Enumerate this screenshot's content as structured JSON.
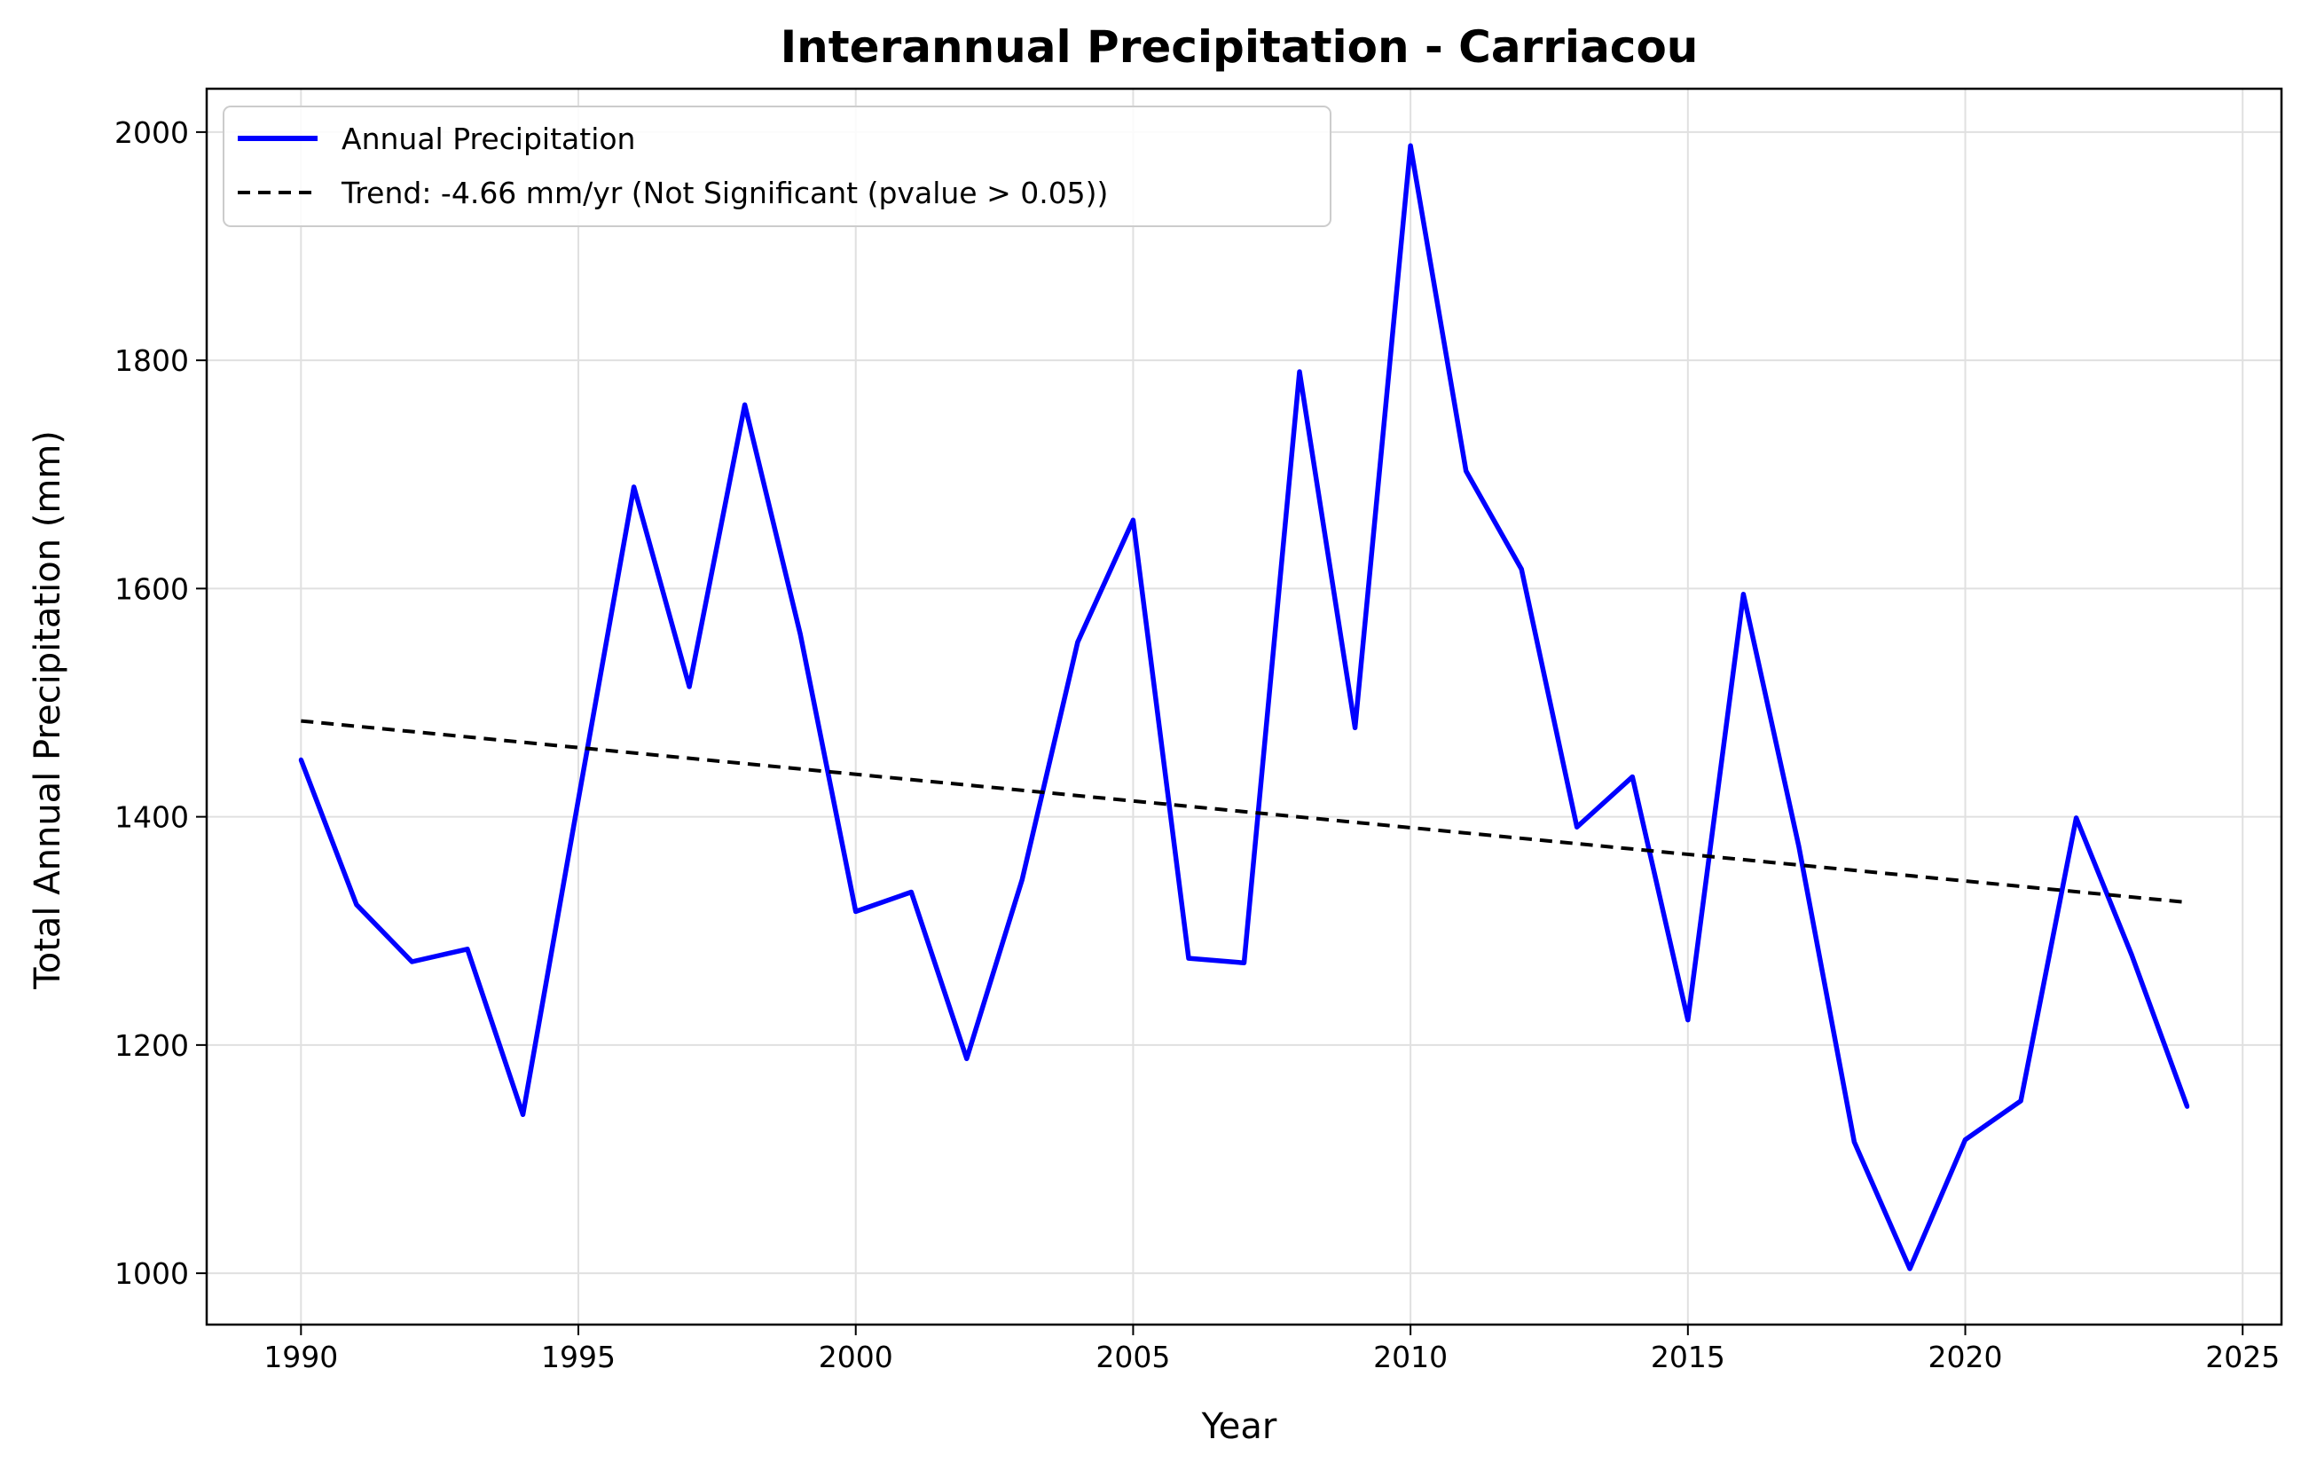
{
  "chart_data": {
    "type": "line",
    "title": "Interannual Precipitation - Carriacou",
    "xlabel": "Year",
    "ylabel": "Total Annual Precipitation (mm)",
    "xlim": [
      1988.3,
      2025.7
    ],
    "ylim": [
      955,
      2038
    ],
    "xticks": [
      1990,
      1995,
      2000,
      2005,
      2010,
      2015,
      2020,
      2025
    ],
    "yticks": [
      1000,
      1200,
      1400,
      1600,
      1800,
      2000
    ],
    "grid": true,
    "legend_position": "top-left",
    "x": [
      1990,
      1991,
      1992,
      1993,
      1994,
      1995,
      1996,
      1997,
      1998,
      1999,
      2000,
      2001,
      2002,
      2003,
      2004,
      2005,
      2006,
      2007,
      2008,
      2009,
      2010,
      2011,
      2012,
      2013,
      2014,
      2015,
      2016,
      2017,
      2018,
      2019,
      2020,
      2021,
      2022,
      2023,
      2024
    ],
    "series": [
      {
        "name": "Annual Precipitation",
        "color": "#0000ff",
        "style": "solid",
        "values": [
          1450,
          1323,
          1273,
          1284,
          1139,
          1415,
          1689,
          1514,
          1761,
          1560,
          1317,
          1334,
          1188,
          1345,
          1553,
          1660,
          1276,
          1272,
          1790,
          1478,
          1988,
          1703,
          1617,
          1391,
          1435,
          1222,
          1595,
          1374,
          1115,
          1004,
          1117,
          1151,
          1399,
          1279,
          1146
        ]
      },
      {
        "name": "Trend: -4.66 mm/yr (Not Significant (pvalue > 0.05))",
        "color": "#000000",
        "style": "dashed",
        "x": [
          1990,
          2024
        ],
        "values": [
          1484,
          1325
        ]
      }
    ]
  }
}
